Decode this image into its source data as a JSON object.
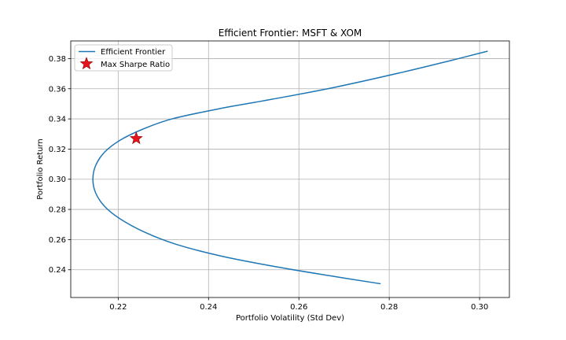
{
  "chart_data": {
    "type": "line",
    "title": "Efficient Frontier: MSFT & XOM",
    "xlabel": "Portfolio Volatility (Std Dev)",
    "ylabel": "Portfolio Return",
    "xlim": [
      0.2095,
      0.3066
    ],
    "ylim": [
      0.2216,
      0.3917
    ],
    "xticks": [
      0.22,
      0.24,
      0.26,
      0.28,
      0.3
    ],
    "xtick_labels": [
      "0.22",
      "0.24",
      "0.26",
      "0.28",
      "0.30"
    ],
    "yticks": [
      0.24,
      0.26,
      0.28,
      0.3,
      0.32,
      0.34,
      0.36,
      0.38
    ],
    "ytick_labels": [
      "0.24",
      "0.26",
      "0.28",
      "0.30",
      "0.32",
      "0.34",
      "0.36",
      "0.38"
    ],
    "grid": true,
    "legend_position": "top-left",
    "series": [
      {
        "name": "Efficient Frontier",
        "color": "#1f77b4",
        "points": [
          [
            0.2781,
            0.2307
          ],
          [
            0.2669,
            0.236
          ],
          [
            0.2549,
            0.242
          ],
          [
            0.2429,
            0.249
          ],
          [
            0.2327,
            0.257
          ],
          [
            0.2258,
            0.265
          ],
          [
            0.2203,
            0.274
          ],
          [
            0.217,
            0.282
          ],
          [
            0.215,
            0.291
          ],
          [
            0.2144,
            0.3
          ],
          [
            0.215,
            0.309
          ],
          [
            0.217,
            0.318
          ],
          [
            0.2205,
            0.326
          ],
          [
            0.2253,
            0.333
          ],
          [
            0.2319,
            0.34
          ],
          [
            0.2428,
            0.347
          ],
          [
            0.254,
            0.353
          ],
          [
            0.268,
            0.361
          ],
          [
            0.283,
            0.371
          ],
          [
            0.294,
            0.379
          ],
          [
            0.3018,
            0.3849
          ]
        ]
      },
      {
        "name": "Max Sharpe Ratio",
        "color": "#e8141c",
        "marker": "star",
        "points": [
          [
            0.224,
            0.327
          ]
        ]
      }
    ]
  }
}
